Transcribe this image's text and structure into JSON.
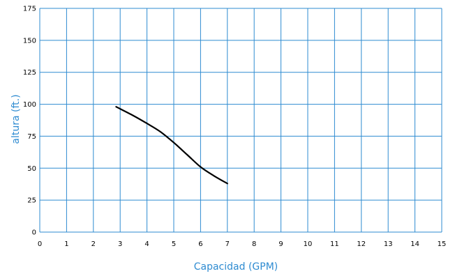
{
  "chart_data": {
    "type": "line",
    "xlabel": "Capacidad (GPM)",
    "ylabel": "altura (ft.)",
    "xlim": [
      0,
      15
    ],
    "ylim": [
      0,
      175
    ],
    "x_ticks": [
      "0",
      "1",
      "2",
      "3",
      "4",
      "5",
      "6",
      "7",
      "8",
      "9",
      "10",
      "11",
      "12",
      "13",
      "14",
      "15"
    ],
    "y_ticks": [
      "0",
      "25",
      "50",
      "75",
      "100",
      "125",
      "150",
      "175"
    ],
    "grid": true,
    "series": [
      {
        "x": [
          2.85,
          3.5,
          4.0,
          4.5,
          5.0,
          5.5,
          6.0,
          6.5,
          7.0
        ],
        "y": [
          98,
          91,
          85,
          78.5,
          70,
          60.5,
          51,
          44,
          38
        ],
        "color": "#000000"
      }
    ]
  },
  "colors": {
    "axis_title": "#2e8bd1",
    "grid": "#2e8bd1",
    "line": "#000000",
    "tick_label": "#000000"
  }
}
